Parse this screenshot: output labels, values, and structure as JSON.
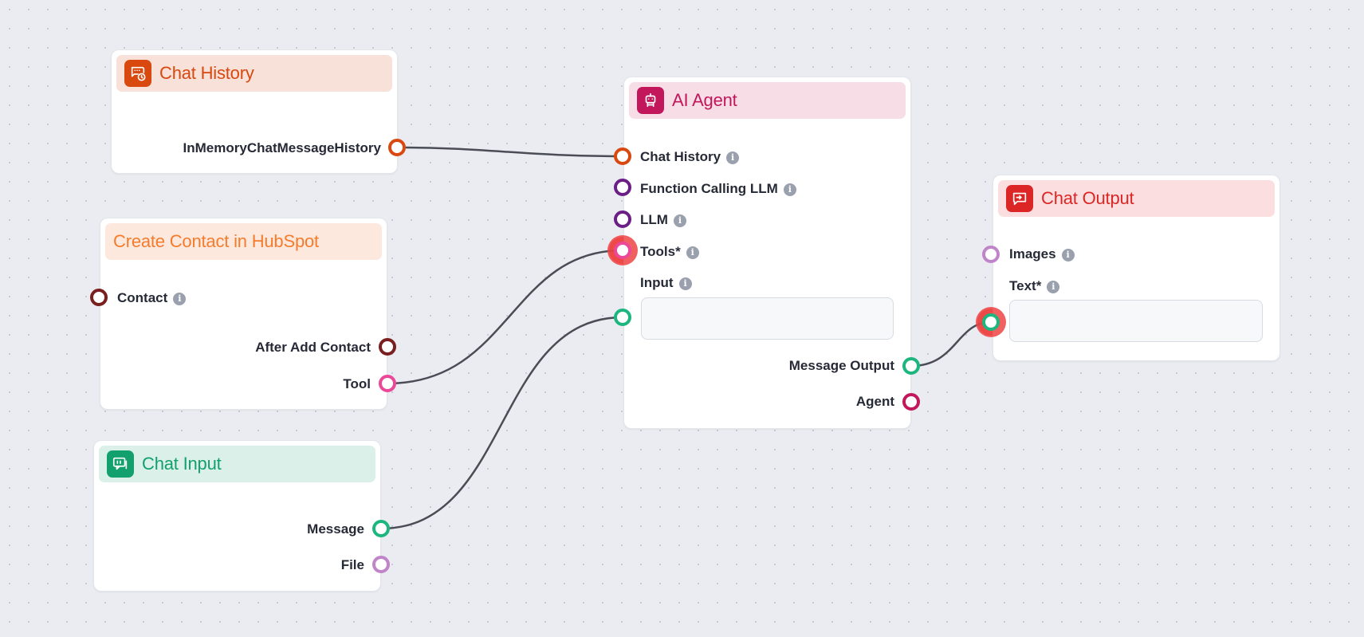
{
  "colors": {
    "canvas_bg": "#ebecf1",
    "edge": "#4a4d56",
    "port_orange": "#d9480f",
    "port_purple": "#6b1f86",
    "port_pink": "#ec4899",
    "port_green": "#1db67f",
    "port_lilac": "#c084c8",
    "port_maroon": "#7a1f1f",
    "port_crimson": "#c2185b",
    "highlight_red": "#ef4444"
  },
  "nodes": {
    "chat_history": {
      "title": "Chat History",
      "icon": "chat-history-icon",
      "header_bg": "#f7e1d9",
      "accent": "#d9480f",
      "outputs": [
        {
          "label": "InMemoryChatMessageHistory"
        }
      ]
    },
    "hubspot": {
      "title": "Create Contact in HubSpot",
      "header_bg": "#fde8de",
      "accent": "#f47c2c",
      "inputs": [
        {
          "label": "Contact"
        }
      ],
      "outputs": [
        {
          "label": "After Add Contact"
        },
        {
          "label": "Tool"
        }
      ]
    },
    "chat_input": {
      "title": "Chat Input",
      "icon": "chat-input-icon",
      "header_bg": "#dbf0e8",
      "accent": "#12a06e",
      "outputs": [
        {
          "label": "Message"
        },
        {
          "label": "File"
        }
      ]
    },
    "ai_agent": {
      "title": "AI Agent",
      "icon": "robot-icon",
      "header_bg": "#f6dde6",
      "accent": "#c2185b",
      "inputs": [
        {
          "label": "Chat History"
        },
        {
          "label": "Function Calling LLM"
        },
        {
          "label": "LLM"
        },
        {
          "label": "Tools*"
        },
        {
          "label": "Input"
        }
      ],
      "input_value": "",
      "outputs": [
        {
          "label": "Message Output"
        },
        {
          "label": "Agent"
        }
      ]
    },
    "chat_output": {
      "title": "Chat Output",
      "icon": "chat-output-icon",
      "header_bg": "#fbdfe0",
      "accent": "#dc2626",
      "inputs": [
        {
          "label": "Images"
        },
        {
          "label": "Text*"
        }
      ],
      "text_value": ""
    }
  }
}
